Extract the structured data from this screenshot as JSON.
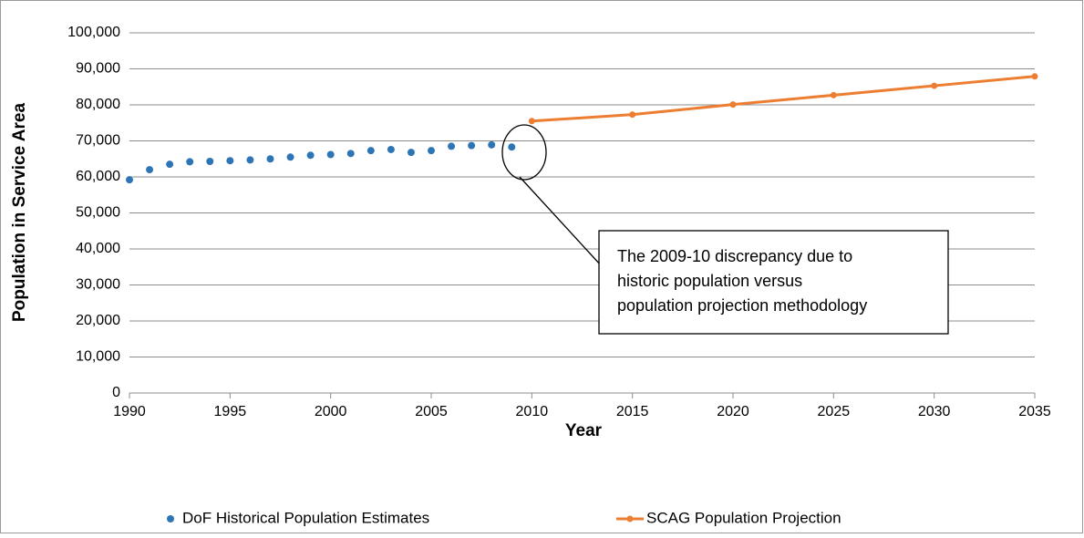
{
  "chart_data": {
    "type": "line",
    "x_label": "Year",
    "y_label": "Population in Service Area",
    "xlim": [
      1990,
      2035
    ],
    "xticks": [
      1990,
      1995,
      2000,
      2005,
      2010,
      2015,
      2020,
      2025,
      2030,
      2035
    ],
    "ylim": [
      0,
      100000
    ],
    "yticks": [
      0,
      {
        "value": 10000,
        "label": "10,000"
      },
      {
        "value": 20000,
        "label": "20,000"
      },
      {
        "value": 30000,
        "label": "30,000"
      },
      {
        "value": 40000,
        "label": "40,000"
      },
      {
        "value": 50000,
        "label": "50,000"
      },
      {
        "value": 60000,
        "label": "60,000"
      },
      {
        "value": 70000,
        "label": "70,000"
      },
      {
        "value": 80000,
        "label": "80,000"
      },
      {
        "value": 90000,
        "label": "90,000"
      },
      {
        "value": 100000,
        "label": "100,000"
      }
    ],
    "grid": true,
    "legend": "bottom",
    "series": [
      {
        "name": "DoF Historical Population Estimates",
        "color": "#2e75b6",
        "line": false,
        "x": [
          1990,
          1991,
          1992,
          1993,
          1994,
          1995,
          1996,
          1997,
          1998,
          1999,
          2000,
          2001,
          2002,
          2003,
          2004,
          2005,
          2006,
          2007,
          2008,
          2009
        ],
        "values": [
          59200,
          62000,
          63500,
          64200,
          64300,
          64500,
          64700,
          65000,
          65500,
          66000,
          66200,
          66500,
          67300,
          67600,
          66800,
          67300,
          68500,
          68700,
          68900,
          68300
        ]
      },
      {
        "name": "SCAG Population Projection",
        "color": "#ed7d31",
        "line": true,
        "x": [
          2010,
          2015,
          2020,
          2025,
          2030,
          2035
        ],
        "values": [
          75500,
          77300,
          80100,
          82700,
          85300,
          87900
        ]
      }
    ],
    "annotation": {
      "lines": [
        "The 2009-10 discrepancy due to",
        "historic population versus",
        "population projection methodology"
      ]
    }
  }
}
